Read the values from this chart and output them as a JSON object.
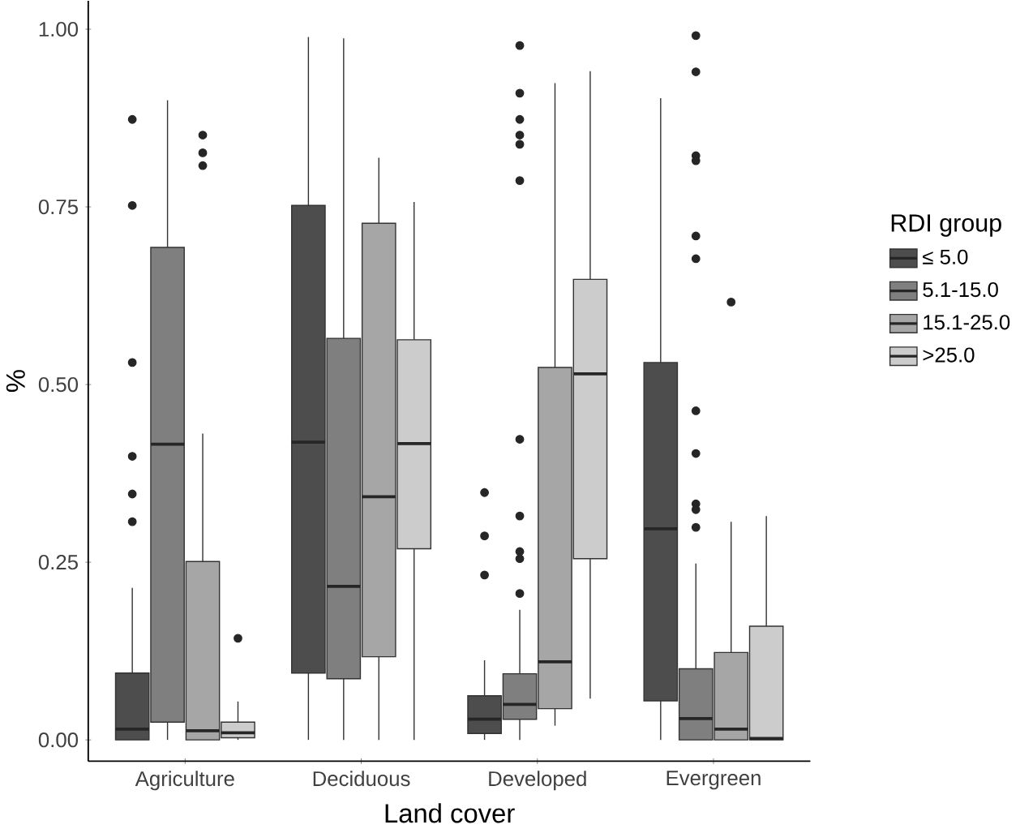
{
  "chart_data": {
    "type": "box",
    "xlabel": "Land cover",
    "ylabel": "%",
    "legend_title": "RDI group",
    "legend": "right",
    "marker": "circle",
    "categories": [
      "Agriculture",
      "Deciduous",
      "Developed",
      "Evergreen"
    ],
    "ylim": [
      -0.03,
      1.04
    ],
    "yticks": [
      {
        "value": 0,
        "label": "0.00"
      },
      {
        "value": 0.25,
        "label": "0.25"
      },
      {
        "value": 0.5,
        "label": "0.50"
      },
      {
        "value": 0.75,
        "label": "0.75"
      },
      {
        "value": 1,
        "label": "1.00"
      }
    ],
    "series": [
      {
        "name": "≤ 5.0",
        "color": "#4d4d4d",
        "boxes": [
          {
            "low": 0,
            "q1": 0,
            "median": 0.015,
            "q3": 0.094,
            "high": 0.214,
            "outliers": [
              0.873,
              0.752,
              0.531,
              0.399,
              0.346,
              0.307
            ]
          },
          {
            "low": 0,
            "q1": 0.094,
            "median": 0.419,
            "q3": 0.752,
            "high": 0.989
          },
          {
            "low": 0,
            "q1": 0.009,
            "median": 0.029,
            "q3": 0.062,
            "high": 0.112,
            "outliers": [
              0.348,
              0.287,
              0.232
            ]
          },
          {
            "low": 0,
            "q1": 0.055,
            "median": 0.297,
            "q3": 0.531,
            "high": 0.903
          }
        ]
      },
      {
        "name": "5.1-15.0",
        "color": "#7f7f7f",
        "boxes": [
          {
            "low": 0,
            "q1": 0.025,
            "median": 0.416,
            "q3": 0.693,
            "high": 0.9
          },
          {
            "low": 0,
            "q1": 0.086,
            "median": 0.216,
            "q3": 0.565,
            "high": 0.987
          },
          {
            "low": 0,
            "q1": 0.029,
            "median": 0.05,
            "q3": 0.093,
            "high": 0.183,
            "outliers": [
              0.977,
              0.91,
              0.873,
              0.851,
              0.838,
              0.787,
              0.423,
              0.315,
              0.265,
              0.255,
              0.206
            ]
          },
          {
            "low": 0,
            "q1": 0,
            "median": 0.03,
            "q3": 0.1,
            "high": 0.248,
            "outliers": [
              0.991,
              0.94,
              0.822,
              0.815,
              0.709,
              0.677,
              0.463,
              0.403,
              0.332,
              0.324,
              0.299
            ]
          }
        ]
      },
      {
        "name": "15.1-25.0",
        "color": "#a6a6a6",
        "boxes": [
          {
            "low": 0,
            "q1": 0,
            "median": 0.013,
            "q3": 0.251,
            "high": 0.431,
            "outliers": [
              0.851,
              0.826,
              0.808
            ]
          },
          {
            "low": 0,
            "q1": 0.117,
            "median": 0.342,
            "q3": 0.727,
            "high": 0.819
          },
          {
            "low": 0.02,
            "q1": 0.044,
            "median": 0.11,
            "q3": 0.524,
            "high": 0.924
          },
          {
            "low": 0,
            "q1": 0,
            "median": 0.015,
            "q3": 0.123,
            "high": 0.307,
            "outliers": [
              0.616
            ]
          }
        ]
      },
      {
        "name": ">25.0",
        "color": "#cccccc",
        "boxes": [
          {
            "low": 0,
            "q1": 0.003,
            "median": 0.01,
            "q3": 0.025,
            "high": 0.054,
            "outliers": [
              0.143
            ]
          },
          {
            "low": 0,
            "q1": 0.269,
            "median": 0.417,
            "q3": 0.563,
            "high": 0.757
          },
          {
            "low": 0.058,
            "q1": 0.255,
            "median": 0.515,
            "q3": 0.648,
            "high": 0.941
          },
          {
            "low": 0,
            "q1": 0,
            "median": 0.002,
            "q3": 0.16,
            "high": 0.315
          }
        ]
      }
    ]
  }
}
